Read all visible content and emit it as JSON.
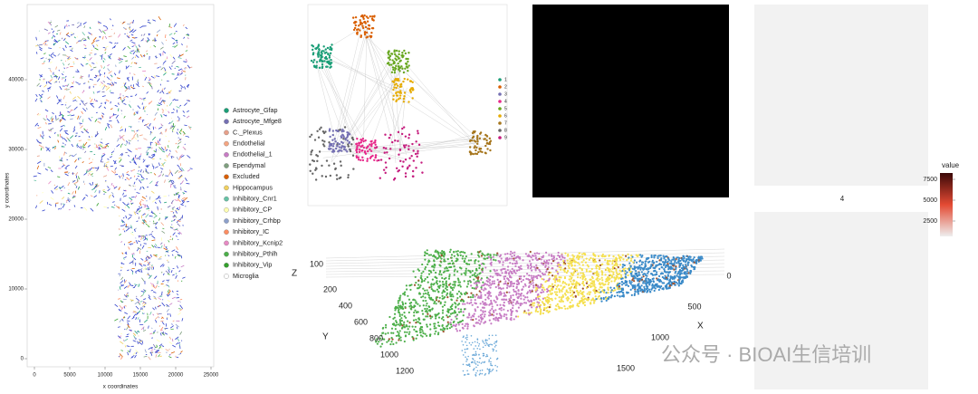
{
  "spatial_panel": {
    "x_label": "x coordinates",
    "y_label": "y coordinates",
    "xticks": [
      0,
      5000,
      10000,
      15000,
      20000,
      25000
    ],
    "yticks": [
      0,
      10000,
      20000,
      30000,
      40000
    ],
    "legend": [
      {
        "name": "Astrocyte_Gfap",
        "color": "#1b9e77"
      },
      {
        "name": "Astrocyte_Mfge8",
        "color": "#7570b3"
      },
      {
        "name": "C._Plexus",
        "color": "#e7a08a"
      },
      {
        "name": "Endothelial",
        "color": "#f4a582"
      },
      {
        "name": "Endothelial_1",
        "color": "#c77cc4"
      },
      {
        "name": "Ependymal",
        "color": "#7f9f7f"
      },
      {
        "name": "Excluded",
        "color": "#d95f02"
      },
      {
        "name": "Hippocampus",
        "color": "#f0d060"
      },
      {
        "name": "Inhibitory_Cnr1",
        "color": "#66c2a5"
      },
      {
        "name": "Inhibitory_CP",
        "color": "#ffffb3"
      },
      {
        "name": "Inhibitory_Crhbp",
        "color": "#8da0cb"
      },
      {
        "name": "Inhibitory_IC",
        "color": "#fc8d62"
      },
      {
        "name": "Inhibitory_Kcnip2",
        "color": "#e78ac3"
      },
      {
        "name": "Inhibitory_Pthlh",
        "color": "#4daf4a"
      },
      {
        "name": "Inhibitory_Vip",
        "color": "#33a02c"
      },
      {
        "name": "Microglia",
        "color": "#ffffff"
      }
    ]
  },
  "network_panel": {
    "legend": [
      {
        "name": "1",
        "color": "#1b9e77"
      },
      {
        "name": "2",
        "color": "#d95f02"
      },
      {
        "name": "3",
        "color": "#7570b3"
      },
      {
        "name": "4",
        "color": "#e7298a"
      },
      {
        "name": "5",
        "color": "#66a61e"
      },
      {
        "name": "6",
        "color": "#e6ab02"
      },
      {
        "name": "7",
        "color": "#a6761d"
      },
      {
        "name": "8",
        "color": "#666666"
      },
      {
        "name": "9",
        "color": "#c51b7d"
      }
    ]
  },
  "volume_panel": {
    "z_label": "Z",
    "y_label": "Y",
    "x_label": "X",
    "zticks": [
      100
    ],
    "yticks": [
      200,
      400,
      600,
      800,
      1000,
      1200
    ],
    "xticks": [
      0,
      500,
      1000,
      1500
    ]
  },
  "heatmap_panel": {
    "second_title": "4",
    "legend_title": "value",
    "legend_ticks": [
      7500,
      5000,
      2500
    ]
  },
  "watermark": "公众号 · BIOAI生信培训"
}
